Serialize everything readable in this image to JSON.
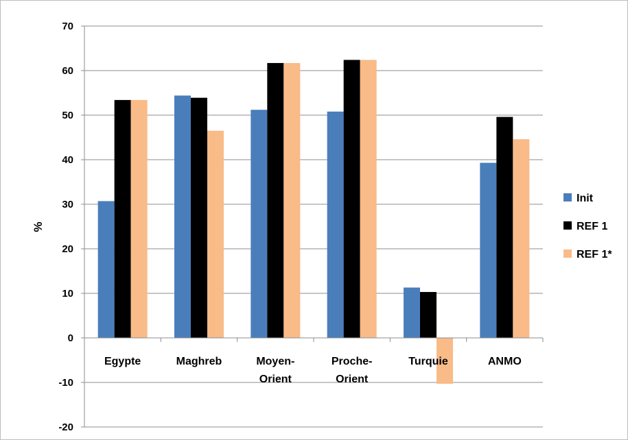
{
  "chart_data": {
    "type": "bar",
    "title": "",
    "xlabel": "",
    "ylabel": "%",
    "ylim": [
      -20,
      70
    ],
    "yticks": [
      -20,
      -10,
      0,
      10,
      20,
      30,
      40,
      50,
      60,
      70
    ],
    "grid": true,
    "legend_position": "right",
    "categories": [
      [
        "Egypte"
      ],
      [
        "Maghreb"
      ],
      [
        "Moyen-",
        "Orient"
      ],
      [
        "Proche-",
        "Orient"
      ],
      [
        "Turquie"
      ],
      [
        "ANMO"
      ]
    ],
    "series": [
      {
        "name": "Init",
        "color": "#4a7ebb",
        "values": [
          30.7,
          54.4,
          51.2,
          50.8,
          11.3,
          39.3
        ]
      },
      {
        "name": "REF 1",
        "color": "#000000",
        "values": [
          53.4,
          53.9,
          61.7,
          62.4,
          10.3,
          49.6
        ]
      },
      {
        "name": "REF 1*",
        "color": "#f9bb88",
        "values": [
          53.4,
          46.5,
          61.7,
          62.4,
          -10.3,
          44.6
        ]
      }
    ]
  }
}
